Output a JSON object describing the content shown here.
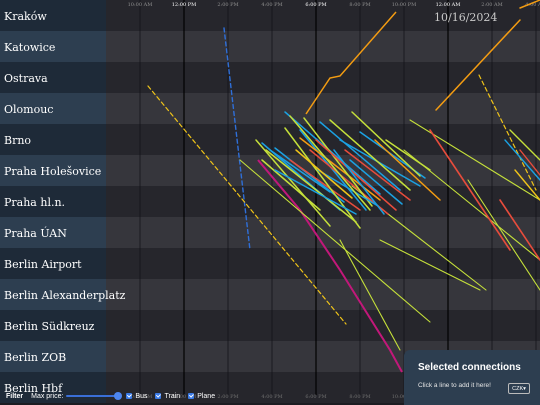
{
  "stations": [
    "Kraków",
    "Katowice",
    "Ostrava",
    "Olomouc",
    "Brno",
    "Praha Holešovice",
    "Praha hl.n.",
    "Praha ÚAN",
    "Berlin Airport",
    "Berlin Alexanderplatz",
    "Berlin Südkreuz",
    "Berlin ZOB",
    "Berlin Hbf"
  ],
  "timeline": {
    "ticks": [
      {
        "label": "10:00 AM",
        "major": false
      },
      {
        "label": "12:00 PM",
        "major": true
      },
      {
        "label": "2:00 PM",
        "major": false
      },
      {
        "label": "4:00 PM",
        "major": false
      },
      {
        "label": "6:00 PM",
        "major": true
      },
      {
        "label": "8:00 PM",
        "major": false
      },
      {
        "label": "10:00 PM",
        "major": false
      },
      {
        "label": "12:00 AM",
        "major": true
      },
      {
        "label": "2:00 AM",
        "major": false
      },
      {
        "label": "4:00 AM",
        "major": false
      }
    ],
    "date_label": "10/16/2024"
  },
  "colors": {
    "bus": "#f0c419",
    "train": "#1ba1e2",
    "orange": "#f39c12",
    "lime": "#c5e03a",
    "red": "#e74c3c",
    "magenta": "#c2187a",
    "blue": "#2f6fd8"
  },
  "filter": {
    "title": "Filter",
    "max_price_label": "Max price:",
    "max_price_fraction": 1.0,
    "modes": [
      {
        "label": "Bus",
        "checked": true
      },
      {
        "label": "Train",
        "checked": true
      },
      {
        "label": "Plane",
        "checked": true
      }
    ]
  },
  "selected_panel": {
    "title": "Selected connections",
    "hint": "Click a line to add it here!",
    "currency": "CZK"
  }
}
